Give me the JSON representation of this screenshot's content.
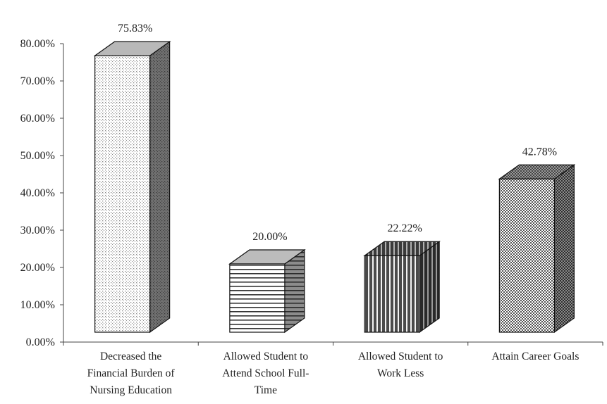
{
  "chart_data": {
    "type": "bar",
    "style": "3d-column",
    "categories": [
      [
        "Decreased the",
        "Financial Burden of",
        "Nursing Education"
      ],
      [
        "Allowed Student to",
        "Attend School Full-",
        "Time"
      ],
      [
        "Allowed Student to",
        "Work Less"
      ],
      [
        "Attain Career Goals"
      ]
    ],
    "values": [
      75.83,
      20.0,
      22.22,
      42.78
    ],
    "data_labels": [
      "75.83%",
      "20.00%",
      "22.22%",
      "42.78%"
    ],
    "patterns": [
      "dots",
      "horizontal-lines",
      "vertical-lines",
      "checker"
    ],
    "title": "",
    "xlabel": "",
    "ylabel": "",
    "ylim": [
      0,
      80
    ],
    "y_ticks": [
      "0.00%",
      "10.00%",
      "20.00%",
      "30.00%",
      "40.00%",
      "50.00%",
      "60.00%",
      "70.00%",
      "80.00%"
    ],
    "grid": false,
    "legend": "none"
  }
}
